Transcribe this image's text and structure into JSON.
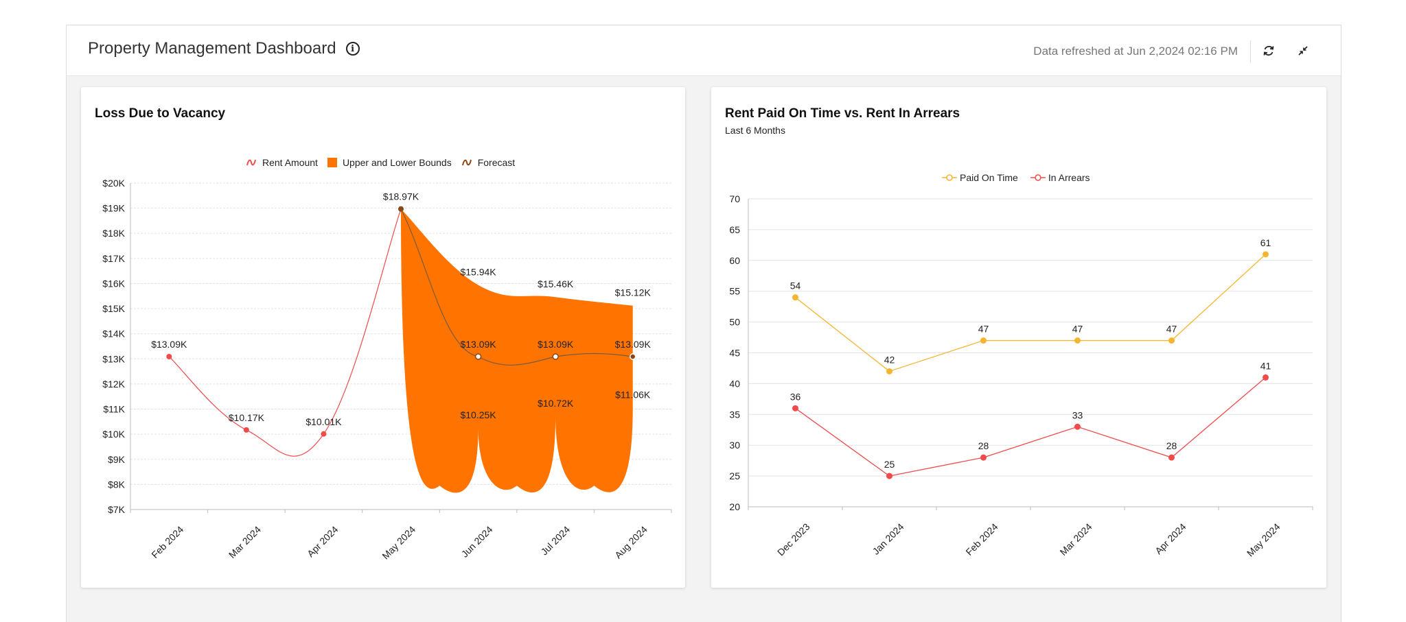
{
  "header": {
    "title": "Property Management Dashboard",
    "refresh_text": "Data refreshed at Jun 2,2024 02:16 PM",
    "icons": [
      "info-icon",
      "refresh-icon",
      "collapse-icon"
    ]
  },
  "colors": {
    "rent_amount": "#f04a4a",
    "bounds": "#ff7400",
    "forecast": "#8b4513",
    "paid_on_time": "#f5b531",
    "in_arrears": "#f04a4a"
  },
  "vacancy": {
    "title": "Loss Due to Vacancy",
    "legend": {
      "rent": "Rent Amount",
      "bounds": "Upper and Lower Bounds",
      "forecast": "Forecast"
    }
  },
  "rent": {
    "title": "Rent Paid On Time vs. Rent In Arrears",
    "subtitle": "Last 6 Months",
    "legend": {
      "paid": "Paid On Time",
      "arrears": "In Arrears"
    }
  },
  "chart_data": [
    {
      "type": "line",
      "title": "Loss Due to Vacancy",
      "categories": [
        "Feb 2024",
        "Mar 2024",
        "Apr 2024",
        "May 2024",
        "Jun 2024",
        "Jul 2024",
        "Aug 2024"
      ],
      "y_ticks": [
        "$7K",
        "$8K",
        "$9K",
        "$10K",
        "$11K",
        "$12K",
        "$13K",
        "$14K",
        "$15K",
        "$16K",
        "$17K",
        "$18K",
        "$19K",
        "$20K"
      ],
      "ylim": [
        7,
        20
      ],
      "grid": true,
      "legend_position": "top",
      "series": [
        {
          "name": "Rent Amount",
          "values": [
            13.09,
            10.17,
            10.01,
            18.97,
            null,
            null,
            null
          ],
          "labels": [
            "$13.09K",
            "$10.17K",
            "$10.01K",
            "$18.97K",
            "",
            "",
            ""
          ]
        },
        {
          "name": "Forecast",
          "values": [
            null,
            null,
            null,
            18.97,
            13.09,
            13.09,
            13.09
          ],
          "labels": [
            "",
            "",
            "",
            "",
            "$13.09K",
            "$13.09K",
            "$13.09K"
          ]
        }
      ],
      "bounds": {
        "name": "Upper and Lower Bounds",
        "upper": [
          null,
          null,
          null,
          18.97,
          15.94,
          15.46,
          15.12
        ],
        "lower": [
          null,
          null,
          null,
          18.97,
          10.25,
          10.72,
          11.06
        ],
        "upper_labels": [
          "",
          "",
          "",
          "",
          "$15.94K",
          "$15.46K",
          "$15.12K"
        ],
        "lower_labels": [
          "",
          "",
          "",
          "",
          "$10.25K",
          "$10.72K",
          "$11.06K"
        ]
      }
    },
    {
      "type": "line",
      "title": "Rent Paid On Time vs. Rent In Arrears",
      "subtitle": "Last 6 Months",
      "categories": [
        "Dec 2023",
        "Jan 2024",
        "Feb 2024",
        "Mar 2024",
        "Apr 2024",
        "May 2024"
      ],
      "y_ticks": [
        "20",
        "25",
        "30",
        "35",
        "40",
        "45",
        "50",
        "55",
        "60",
        "65",
        "70"
      ],
      "ylim": [
        20,
        70
      ],
      "grid": true,
      "legend_position": "top",
      "series": [
        {
          "name": "Paid On Time",
          "values": [
            54,
            42,
            47,
            47,
            47,
            61
          ]
        },
        {
          "name": "In Arrears",
          "values": [
            36,
            25,
            28,
            33,
            28,
            41
          ]
        }
      ]
    }
  ]
}
